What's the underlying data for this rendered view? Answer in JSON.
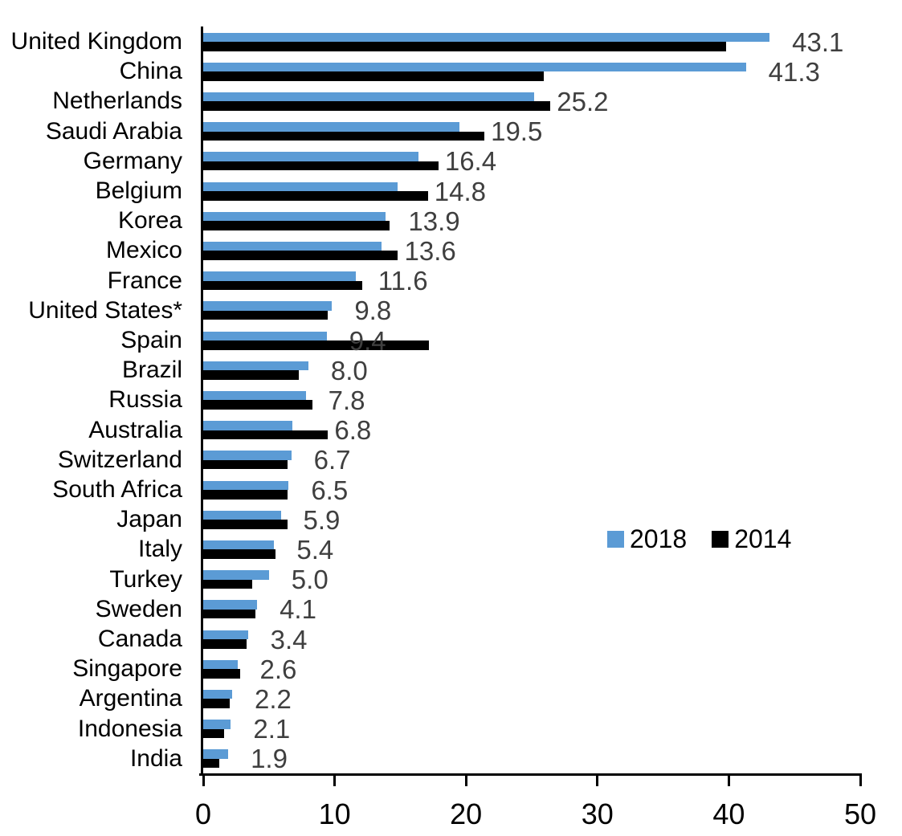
{
  "chart_data": {
    "type": "bar",
    "orientation": "horizontal",
    "title": "",
    "xlabel": "",
    "ylabel": "",
    "categories": [
      "United Kingdom",
      "China",
      "Netherlands",
      "Saudi Arabia",
      "Germany",
      "Belgium",
      "Korea",
      "Mexico",
      "France",
      "United States*",
      "Spain",
      "Brazil",
      "Russia",
      "Australia",
      "Switzerland",
      "South Africa",
      "Japan",
      "Italy",
      "Turkey",
      "Sweden",
      "Canada",
      "Singapore",
      "Argentina",
      "Indonesia",
      "India"
    ],
    "series": [
      {
        "name": "2018",
        "color": "#5B9BD5",
        "values": [
          43.1,
          41.3,
          25.2,
          19.5,
          16.4,
          14.8,
          13.9,
          13.6,
          11.6,
          9.8,
          9.4,
          8.0,
          7.8,
          6.8,
          6.7,
          6.5,
          5.9,
          5.4,
          5.0,
          4.1,
          3.4,
          2.6,
          2.2,
          2.1,
          1.9
        ]
      },
      {
        "name": "2014",
        "color": "#000000",
        "values": [
          39.8,
          25.9,
          26.4,
          21.4,
          17.9,
          17.1,
          14.2,
          14.8,
          12.1,
          9.5,
          17.2,
          7.3,
          8.3,
          9.5,
          6.4,
          6.4,
          6.4,
          5.5,
          3.7,
          4.0,
          3.3,
          2.8,
          2.0,
          1.6,
          1.2
        ]
      }
    ],
    "data_labels": {
      "series": "2018",
      "color": "#3F3F3F",
      "values": [
        "43.1",
        "41.3",
        "25.2",
        "19.5",
        "16.4",
        "14.8",
        "13.9",
        "13.6",
        "11.6",
        "9.8",
        "9.4",
        "8.0",
        "7.8",
        "6.8",
        "6.7",
        "6.5",
        "5.9",
        "5.4",
        "5.0",
        "4.1",
        "3.4",
        "2.6",
        "2.2",
        "2.1",
        "1.9"
      ]
    },
    "xlim": [
      0,
      50
    ],
    "x_ticks": [
      "0",
      "10",
      "20",
      "30",
      "40",
      "50"
    ],
    "grid": false,
    "legend_position": "middle-right",
    "axis_color": "#000000",
    "category_label_color": "#000000"
  }
}
